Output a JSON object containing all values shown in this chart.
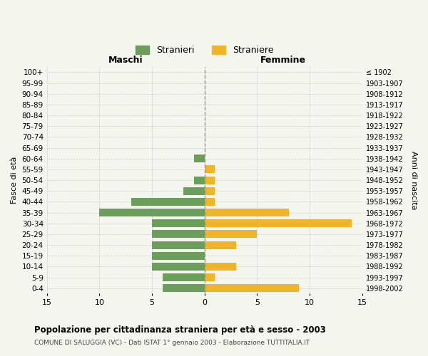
{
  "age_groups": [
    "0-4",
    "5-9",
    "10-14",
    "15-19",
    "20-24",
    "25-29",
    "30-34",
    "35-39",
    "40-44",
    "45-49",
    "50-54",
    "55-59",
    "60-64",
    "65-69",
    "70-74",
    "75-79",
    "80-84",
    "85-89",
    "90-94",
    "95-99",
    "100+"
  ],
  "birth_years": [
    "1998-2002",
    "1993-1997",
    "1988-1992",
    "1983-1987",
    "1978-1982",
    "1973-1977",
    "1968-1972",
    "1963-1967",
    "1958-1962",
    "1953-1957",
    "1948-1952",
    "1943-1947",
    "1938-1942",
    "1933-1937",
    "1928-1932",
    "1923-1927",
    "1918-1922",
    "1913-1917",
    "1908-1912",
    "1903-1907",
    "≤ 1902"
  ],
  "maschi": [
    4,
    4,
    5,
    5,
    5,
    5,
    5,
    10,
    7,
    2,
    1,
    0,
    1,
    0,
    0,
    0,
    0,
    0,
    0,
    0,
    0
  ],
  "femmine": [
    9,
    1,
    3,
    0,
    3,
    5,
    14,
    8,
    1,
    1,
    1,
    1,
    0,
    0,
    0,
    0,
    0,
    0,
    0,
    0,
    0
  ],
  "maschi_color": "#6a9e5a",
  "femmine_color": "#f0b429",
  "title": "Popolazione per cittadinanza straniera per età e sesso - 2003",
  "subtitle": "COMUNE DI SALUGGIA (VC) - Dati ISTAT 1° gennaio 2003 - Elaborazione TUTTITALIA.IT",
  "xlabel_left": "Maschi",
  "xlabel_right": "Femmine",
  "ylabel_left": "Fasce di età",
  "ylabel_right": "Anni di nascita",
  "xlim": 15,
  "legend_stranieri": "Stranieri",
  "legend_straniere": "Straniere",
  "bg_color": "#f5f5f0",
  "grid_color": "#cccccc",
  "zero_line_color": "#999977"
}
